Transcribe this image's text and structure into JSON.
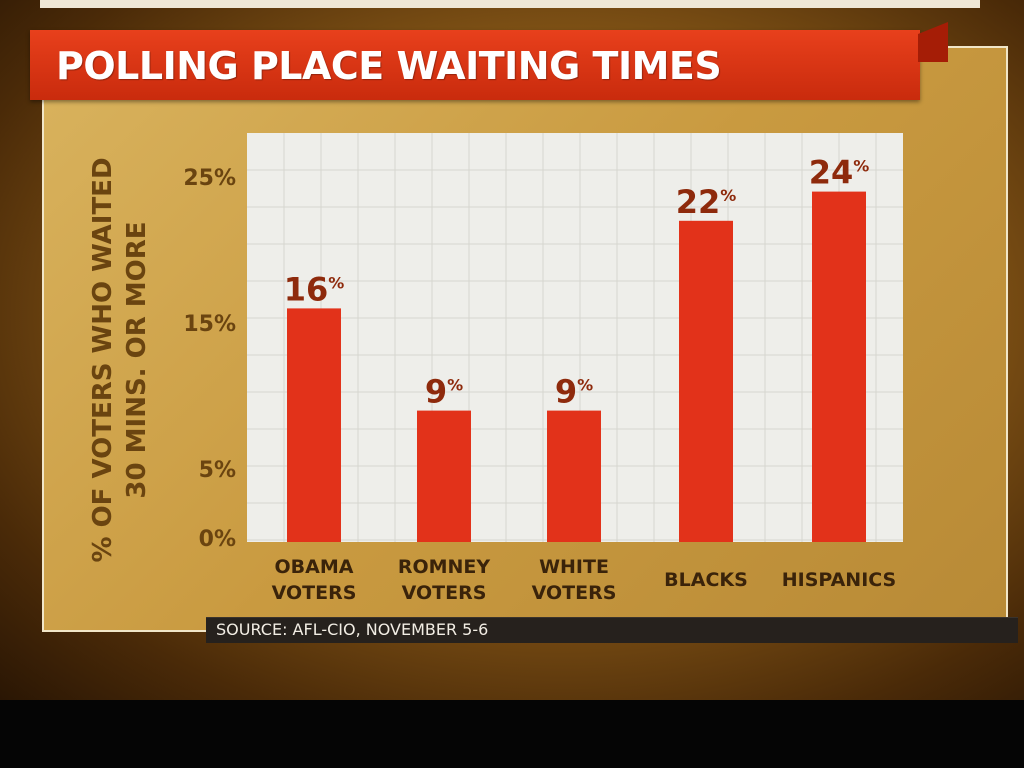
{
  "title": "POLLING PLACE WAITING TIMES",
  "source": "SOURCE: AFL-CIO, NOVEMBER 5-6",
  "colors": {
    "bar": "#e2321a",
    "value_label": "#8e2a0c",
    "axis_text": "#6a4410",
    "title_bg": "#d8340f",
    "plot_bg": "#eeeeea"
  },
  "chart_data": {
    "type": "bar",
    "ylabel_lines": [
      "% OF VOTERS WHO WAITED",
      "30 MINS. OR MORE"
    ],
    "categories": [
      [
        "OBAMA",
        "VOTERS"
      ],
      [
        "ROMNEY",
        "VOTERS"
      ],
      [
        "WHITE",
        "VOTERS"
      ],
      [
        "BLACKS"
      ],
      [
        "HISPANICS"
      ]
    ],
    "values": [
      16,
      9,
      9,
      22,
      24
    ],
    "value_labels": [
      "16",
      "9",
      "9",
      "22",
      "24"
    ],
    "value_suffix": "%",
    "y_ticks": [
      {
        "value": 0,
        "label": "0%"
      },
      {
        "value": 5,
        "label": "5%"
      },
      {
        "value": 15,
        "label": "15%"
      },
      {
        "value": 25,
        "label": "25%"
      }
    ],
    "ylim": [
      0,
      25
    ],
    "grid": true,
    "legend": "none"
  }
}
